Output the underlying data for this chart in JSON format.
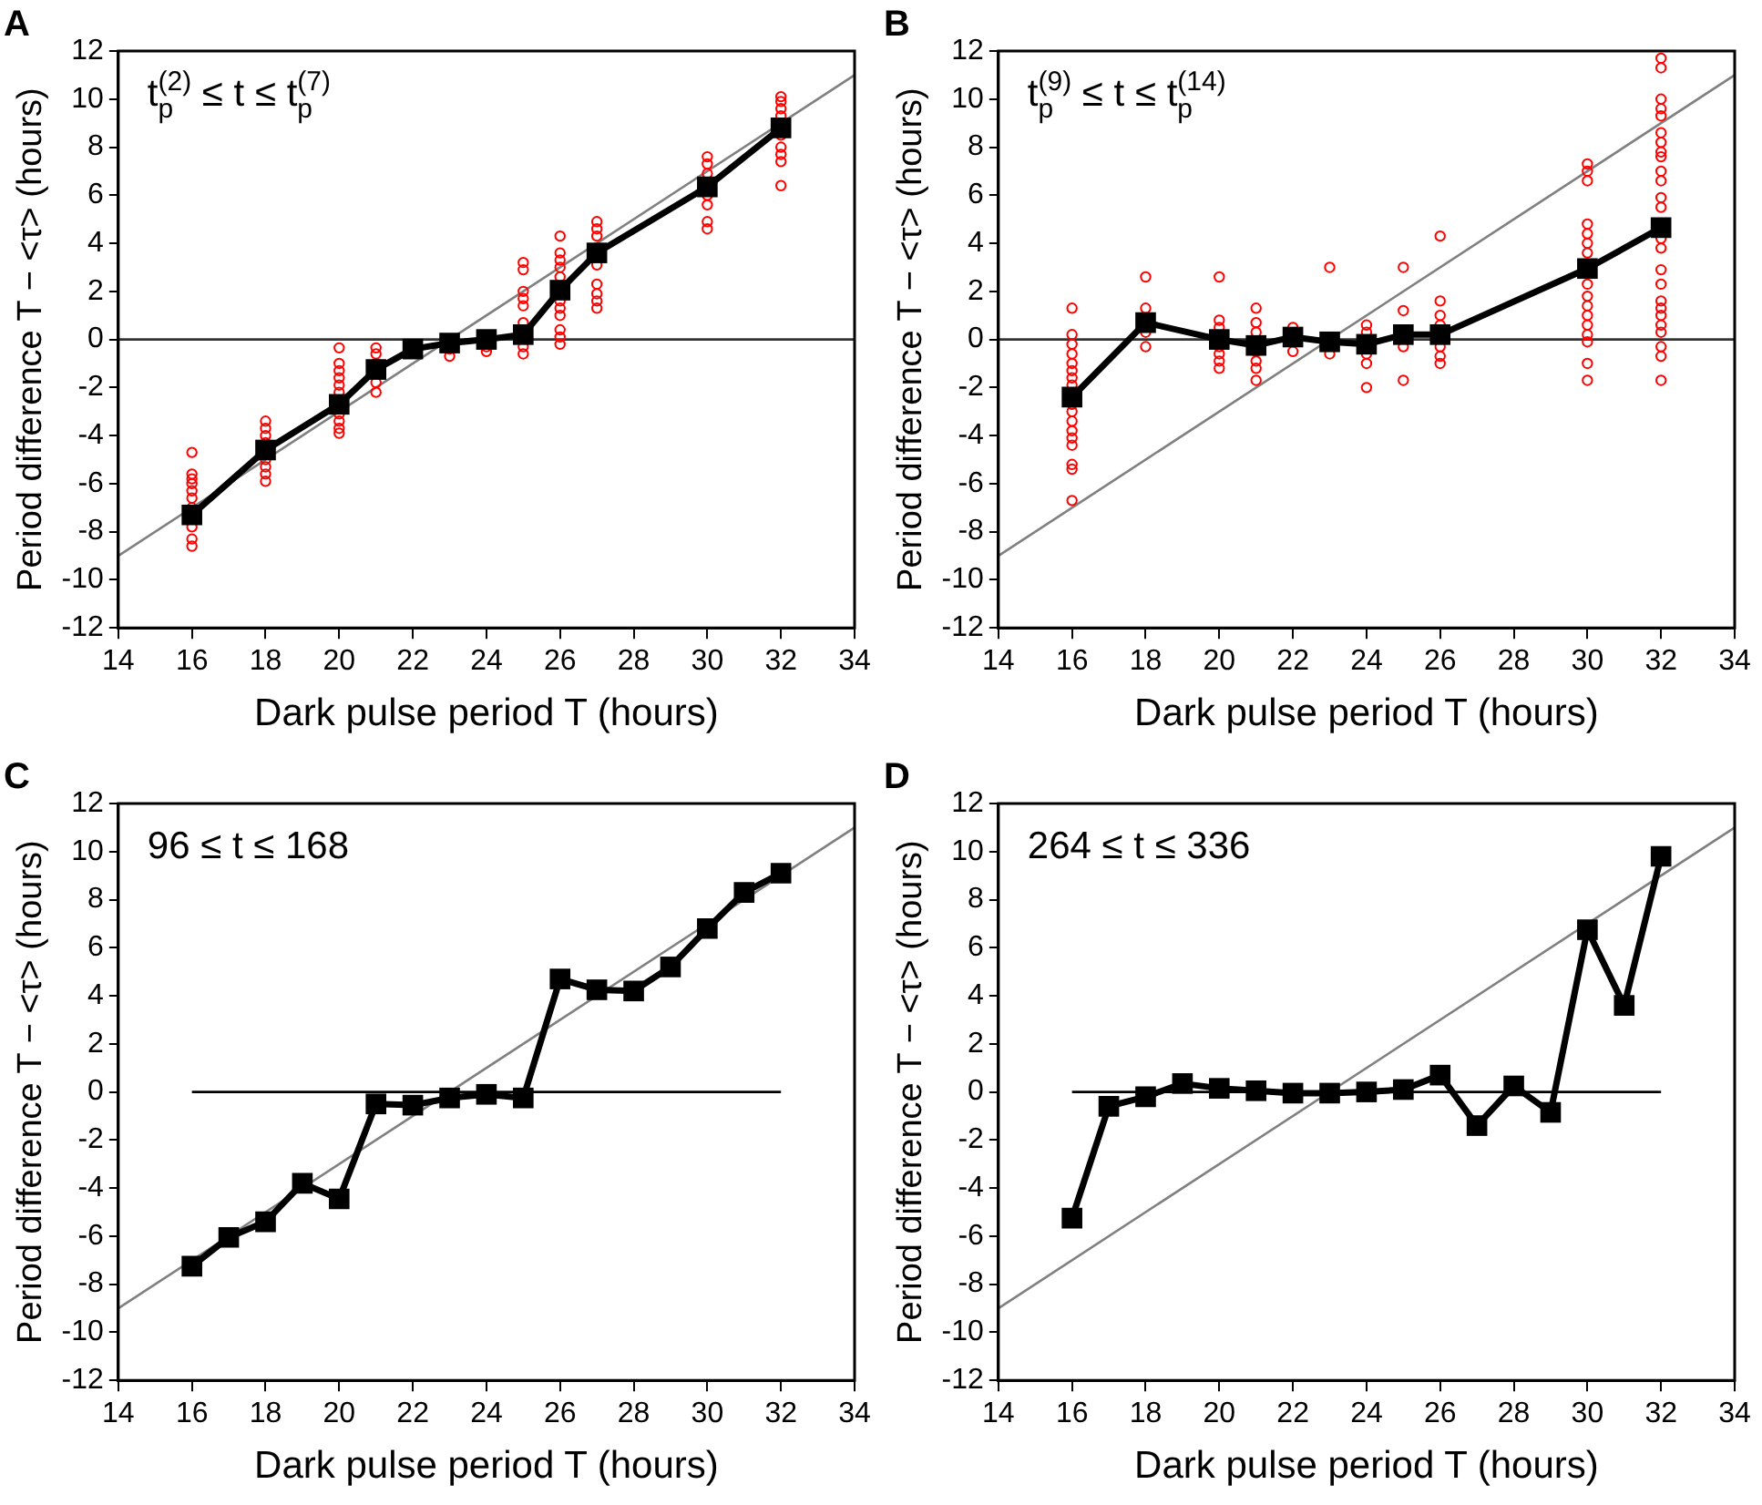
{
  "chart_data": [
    {
      "type": "line",
      "title": "A",
      "xlabel": "Dark pulse period T (hours)",
      "ylabel": "Period difference T − <τ> (hours)",
      "annotations": [
        "t$_{p}$$^{(2)}$ ≤ t ≤ t$_{p}$$^{(7)}$"
      ],
      "xlim": [
        14,
        34
      ],
      "ylim": [
        -12,
        12
      ],
      "xticks": [
        14,
        16,
        18,
        20,
        22,
        24,
        26,
        28,
        30,
        32,
        34
      ],
      "yticks": [
        -12,
        -10,
        -8,
        -6,
        -4,
        -2,
        0,
        2,
        4,
        6,
        8,
        10,
        12
      ],
      "ref_lines": [
        {
          "axis": "y",
          "value": 0,
          "color": "#333333"
        }
      ],
      "series": [
        {
          "type": "line",
          "color": "#808080",
          "marker": "none",
          "x": [
            14,
            34
          ],
          "values": [
            -9,
            11
          ]
        },
        {
          "type": "scatter",
          "color": "#ff0000",
          "marker": "circle",
          "x": [
            16,
            16,
            16,
            16,
            16,
            16,
            16,
            16,
            16,
            16,
            18,
            18,
            18,
            18,
            18,
            18,
            18,
            18,
            20,
            20,
            20,
            20,
            20,
            20,
            20,
            20,
            20,
            20,
            21,
            21,
            21,
            21,
            21,
            23,
            23,
            24,
            24,
            25,
            25,
            25,
            25,
            25,
            25,
            25,
            25,
            26,
            26,
            26,
            26,
            26,
            26,
            26,
            26,
            26,
            26,
            26,
            27,
            27,
            27,
            27,
            27,
            27,
            27,
            27,
            30,
            30,
            30,
            30,
            30,
            30,
            30,
            32,
            32,
            32,
            32,
            32,
            32,
            32,
            32,
            32
          ],
          "values": [
            -4.7,
            -5.6,
            -5.8,
            -6.0,
            -6.3,
            -6.6,
            -7.0,
            -7.8,
            -8.3,
            -8.6,
            -3.4,
            -3.7,
            -4.0,
            -4.3,
            -5.0,
            -5.3,
            -5.6,
            -5.9,
            -0.35,
            -1.0,
            -1.3,
            -1.6,
            -1.9,
            -2.2,
            -3.1,
            -3.4,
            -3.7,
            -3.9,
            -0.35,
            -0.6,
            -1.0,
            -1.8,
            -2.2,
            -0.4,
            -0.7,
            -0.3,
            -0.5,
            3.2,
            2.9,
            2.0,
            1.7,
            1.4,
            0.7,
            -0.3,
            -0.6,
            4.3,
            3.6,
            3.3,
            3.0,
            2.6,
            1.6,
            1.3,
            1.0,
            0.4,
            0.1,
            -0.2,
            4.9,
            4.6,
            4.3,
            3.1,
            2.3,
            1.9,
            1.6,
            1.3,
            7.6,
            7.3,
            6.9,
            6.0,
            5.6,
            4.9,
            4.6,
            10.1,
            9.9,
            9.6,
            9.3,
            8.5,
            8.0,
            7.7,
            7.4,
            6.4
          ]
        },
        {
          "type": "line",
          "color": "#000000",
          "marker": "square",
          "x": [
            16,
            18,
            20,
            21,
            22,
            23,
            24,
            25,
            26,
            27,
            30,
            32
          ],
          "values": [
            -7.3,
            -4.6,
            -2.7,
            -1.25,
            -0.4,
            -0.15,
            0,
            0.2,
            2.05,
            3.6,
            6.35,
            8.8
          ]
        }
      ]
    },
    {
      "type": "line",
      "title": "B",
      "xlabel": "Dark pulse period T (hours)",
      "ylabel": "Period difference T − <τ> (hours)",
      "annotations": [
        "t$_{p}$$^{(9)}$ ≤ t ≤ t$_{p}$$^{(14)}$"
      ],
      "xlim": [
        14,
        34
      ],
      "ylim": [
        -12,
        12
      ],
      "xticks": [
        14,
        16,
        18,
        20,
        22,
        24,
        26,
        28,
        30,
        32,
        34
      ],
      "yticks": [
        -12,
        -10,
        -8,
        -6,
        -4,
        -2,
        0,
        2,
        4,
        6,
        8,
        10,
        12
      ],
      "ref_lines": [
        {
          "axis": "y",
          "value": 0,
          "color": "#333333"
        }
      ],
      "series": [
        {
          "type": "line",
          "color": "#808080",
          "marker": "none",
          "x": [
            14,
            34
          ],
          "values": [
            -9,
            11
          ]
        },
        {
          "type": "scatter",
          "color": "#ff0000",
          "marker": "circle",
          "x": [
            16,
            16,
            16,
            16,
            16,
            16,
            16,
            16,
            16,
            16,
            16,
            16,
            16,
            16,
            16,
            16,
            16,
            18,
            18,
            18,
            18,
            20,
            20,
            20,
            20,
            20,
            20,
            20,
            21,
            21,
            21,
            21,
            21,
            21,
            21,
            22,
            22,
            23,
            23,
            24,
            24,
            24,
            24,
            24,
            25,
            25,
            25,
            25,
            26,
            26,
            26,
            26,
            26,
            26,
            26,
            30,
            30,
            30,
            30,
            30,
            30,
            30,
            30,
            30,
            30,
            30,
            30,
            30,
            30,
            30,
            30,
            32,
            32,
            32,
            32,
            32,
            32,
            32,
            32,
            32,
            32,
            32,
            32,
            32,
            32,
            32,
            32,
            32,
            32,
            32,
            32,
            32,
            32,
            32,
            32,
            32
          ],
          "values": [
            1.3,
            0.2,
            -0.2,
            -0.6,
            -1.0,
            -1.3,
            -1.6,
            -1.9,
            -2.7,
            -3.0,
            -3.4,
            -3.8,
            -4.1,
            -4.4,
            -5.2,
            -5.4,
            -6.7,
            2.6,
            1.3,
            0.3,
            -0.3,
            2.6,
            0.8,
            0.5,
            -0.3,
            -0.6,
            -0.9,
            -1.2,
            1.3,
            0.7,
            0.3,
            -0.5,
            -0.9,
            -1.2,
            -1.7,
            0.5,
            -0.5,
            3.0,
            -0.6,
            0.6,
            0.3,
            -0.6,
            -1.0,
            -2.0,
            3.0,
            1.2,
            -0.3,
            -1.7,
            4.3,
            1.6,
            1.0,
            0.6,
            -0.3,
            -0.7,
            -1.0,
            7.3,
            7.0,
            6.6,
            4.8,
            4.4,
            4.0,
            3.6,
            2.3,
            1.8,
            1.4,
            1.0,
            0.6,
            0.2,
            -0.1,
            -1.0,
            -1.7,
            11.7,
            11.3,
            10.0,
            9.6,
            9.3,
            8.6,
            8.2,
            7.8,
            7.6,
            7.0,
            6.6,
            5.9,
            5.5,
            4.2,
            3.8,
            2.9,
            2.3,
            1.6,
            1.3,
            1.0,
            0.6,
            0.3,
            -0.3,
            -0.7,
            -1.7
          ]
        },
        {
          "type": "line",
          "color": "#000000",
          "marker": "square",
          "x": [
            16,
            18,
            20,
            21,
            22,
            23,
            24,
            25,
            26,
            30,
            32
          ],
          "values": [
            -2.4,
            0.7,
            0,
            -0.25,
            0.1,
            -0.1,
            -0.2,
            0.2,
            0.2,
            2.95,
            4.65
          ]
        }
      ]
    },
    {
      "type": "line",
      "title": "C",
      "xlabel": "Dark pulse period T (hours)",
      "ylabel": "Period difference T − <τ> (hours)",
      "annotations": [
        "96 ≤ t ≤ 168"
      ],
      "xlim": [
        14,
        34
      ],
      "ylim": [
        -12,
        12
      ],
      "xticks": [
        14,
        16,
        18,
        20,
        22,
        24,
        26,
        28,
        30,
        32,
        34
      ],
      "yticks": [
        -12,
        -10,
        -8,
        -6,
        -4,
        -2,
        0,
        2,
        4,
        6,
        8,
        10,
        12
      ],
      "series": [
        {
          "type": "line",
          "color": "#808080",
          "marker": "none",
          "x": [
            14,
            34
          ],
          "values": [
            -9,
            11
          ]
        },
        {
          "type": "line",
          "color": "#000000",
          "marker": "none",
          "x": [
            16,
            32
          ],
          "values": [
            0,
            0
          ]
        },
        {
          "type": "line",
          "color": "#000000",
          "marker": "square",
          "x": [
            16,
            17,
            18,
            19,
            20,
            21,
            22,
            23,
            24,
            25,
            26,
            27,
            28,
            29,
            30,
            31,
            32
          ],
          "values": [
            -7.25,
            -6.05,
            -5.4,
            -3.8,
            -4.45,
            -0.5,
            -0.55,
            -0.25,
            -0.1,
            -0.25,
            4.7,
            4.25,
            4.2,
            5.2,
            6.8,
            8.3,
            9.1
          ]
        }
      ]
    },
    {
      "type": "line",
      "title": "D",
      "xlabel": "Dark pulse period T (hours)",
      "ylabel": "Period difference T − <τ> (hours)",
      "annotations": [
        "264 ≤ t ≤ 336"
      ],
      "xlim": [
        14,
        34
      ],
      "ylim": [
        -12,
        12
      ],
      "xticks": [
        14,
        16,
        18,
        20,
        22,
        24,
        26,
        28,
        30,
        32,
        34
      ],
      "yticks": [
        -12,
        -10,
        -8,
        -6,
        -4,
        -2,
        0,
        2,
        4,
        6,
        8,
        10,
        12
      ],
      "series": [
        {
          "type": "line",
          "color": "#808080",
          "marker": "none",
          "x": [
            14,
            34
          ],
          "values": [
            -9,
            11
          ]
        },
        {
          "type": "line",
          "color": "#000000",
          "marker": "none",
          "x": [
            16,
            32
          ],
          "values": [
            0,
            0
          ]
        },
        {
          "type": "line",
          "color": "#000000",
          "marker": "square",
          "x": [
            16,
            17,
            18,
            19,
            20,
            21,
            22,
            23,
            24,
            25,
            26,
            27,
            28,
            29,
            30,
            31,
            32
          ],
          "values": [
            -5.25,
            -0.6,
            -0.2,
            0.35,
            0.15,
            0.05,
            -0.05,
            -0.05,
            0,
            0.1,
            0.7,
            -1.4,
            0.25,
            -0.85,
            6.75,
            3.6,
            9.8
          ]
        }
      ]
    }
  ]
}
